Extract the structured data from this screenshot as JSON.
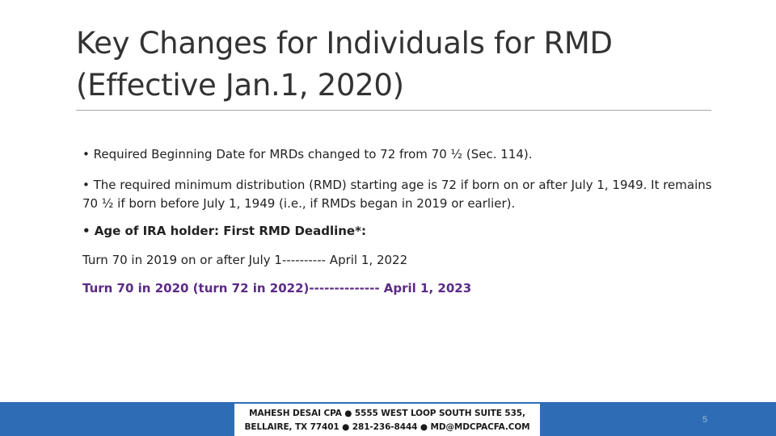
{
  "slide": {
    "title_line1": "Key Changes for Individuals for RMD",
    "title_line2": "(Effective Jan.1, 2020)",
    "bullets": {
      "b1": "•  Required Beginning Date for MRDs changed to 72  from 70 ½ (Sec. 114).",
      "b2": "• The required minimum distribution (RMD) starting age is 72 if born on or after July 1, 1949. It remains 70 ½ if born before July 1, 1949 (i.e., if RMDs began in 2019 or earlier).",
      "b3": "• Age of IRA holder: First RMD Deadline*:",
      "line4": "Turn 70 in 2019 on or after July 1---------- April 1, 2022",
      "line5": "Turn 70 in 2020 (turn 72 in 2022)-------------- April 1, 2023"
    },
    "highlight_color": "#5b2a86"
  },
  "footer": {
    "line1": "MAHESH DESAI CPA  ●  5555 WEST LOOP SOUTH SUITE 535,",
    "line2": "BELLAIRE, TX 77401 ● 281-236-8444 ● MD@MDCPACFA.COM",
    "page_number": "5",
    "bar_color": "#2e6db5"
  }
}
